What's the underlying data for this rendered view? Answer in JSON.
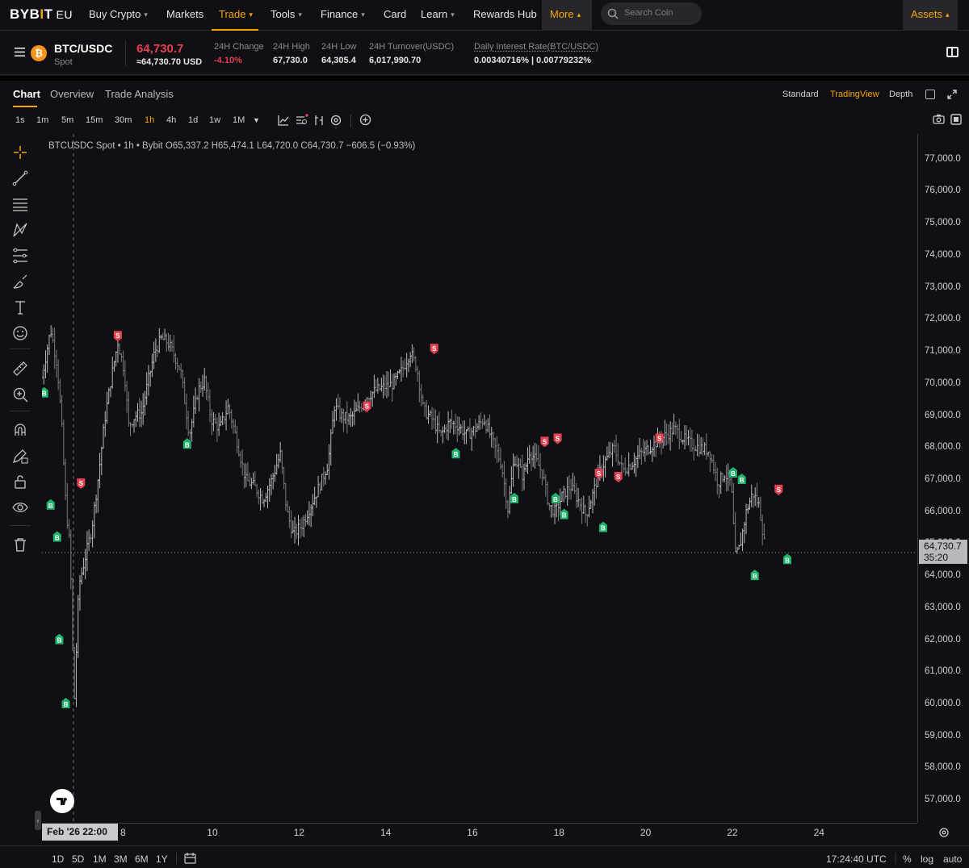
{
  "brand": {
    "logo_pre": "BYB",
    "logo_i": "I",
    "logo_post": "T",
    "region": "EU",
    "accent": "#f7a600",
    "down_color": "#e3414f",
    "up_color": "#20b26c"
  },
  "nav": {
    "items": [
      "Buy Crypto",
      "Markets",
      "Trade",
      "Tools",
      "Finance",
      "Card",
      "Learn",
      "Rewards Hub",
      "More"
    ],
    "search_placeholder": "Search Coin",
    "assets": "Assets"
  },
  "ticker": {
    "pair": "BTC/USDC",
    "type": "Spot",
    "coin_symbol": "₿",
    "last_price": "64,730.7",
    "last_usd": "≈64,730.70 USD",
    "stats": [
      {
        "label": "24H Change",
        "value": "-4.10%"
      },
      {
        "label": "24H High",
        "value": "67,730.0"
      },
      {
        "label": "24H Low",
        "value": "64,305.4"
      },
      {
        "label": "24H Turnover(USDC)",
        "value": "6,017,990.70"
      },
      {
        "label": "Daily Interest Rate(BTC/USDC)",
        "value": "0.00340716% | 0.00779232%"
      }
    ]
  },
  "tabs": [
    "Chart",
    "Overview",
    "Trade Analysis"
  ],
  "views": [
    "Standard",
    "TradingView",
    "Depth"
  ],
  "timeframes": [
    "1s",
    "1m",
    "5m",
    "15m",
    "30m",
    "1h",
    "4h",
    "1d",
    "1w",
    "1M"
  ],
  "active_timeframe": "1h",
  "legend": "BTCUSDC Spot • 1h • Bybit  O65,337.2  H65,474.1  L64,720.0  C64,730.7  −606.5 (−0.93%)",
  "price_tag": {
    "price": "64,730.7",
    "countdown": "35:20"
  },
  "crosshair_date": "Feb '26   22:00",
  "bottom": {
    "ranges": [
      "1D",
      "5D",
      "1M",
      "3M",
      "6M",
      "1Y"
    ],
    "clock": "17:24:40 UTC",
    "pct": "%",
    "log": "log",
    "auto": "auto"
  },
  "chart_data": {
    "type": "ohlc",
    "symbol": "BTCUSDC",
    "interval": "1h",
    "y_ticks": [
      77000,
      76000,
      75000,
      74000,
      73000,
      72000,
      71000,
      70000,
      69000,
      68000,
      67000,
      66000,
      65000,
      64000,
      63000,
      62000,
      61000,
      60000,
      59000,
      58000,
      57000
    ],
    "y_tick_labels": [
      "77,000.0",
      "76,000.0",
      "75,000.0",
      "74,000.0",
      "73,000.0",
      "72,000.0",
      "71,000.0",
      "70,000.0",
      "69,000.0",
      "68,000.0",
      "67,000.0",
      "66,000.0",
      "65,000.0",
      "64,000.0",
      "63,000.0",
      "62,000.0",
      "61,000.0",
      "60,000.0",
      "59,000.0",
      "58,000.0",
      "57,000.0"
    ],
    "x_tick_labels": [
      "8",
      "10",
      "12",
      "14",
      "16",
      "18",
      "20",
      "22",
      "24"
    ],
    "x_tick_days": [
      8,
      10,
      12,
      14,
      16,
      18,
      20,
      22,
      24
    ],
    "x_range_days": [
      6.1,
      26.3
    ],
    "y_range": [
      56300,
      77800
    ],
    "last_price": 64730.7,
    "path": [
      [
        6.1,
        70200
      ],
      [
        6.3,
        71700
      ],
      [
        6.45,
        70600
      ],
      [
        6.55,
        68800
      ],
      [
        6.65,
        66200
      ],
      [
        6.75,
        64800
      ],
      [
        6.8,
        62000
      ],
      [
        6.85,
        60200
      ],
      [
        6.95,
        63700
      ],
      [
        7.1,
        64600
      ],
      [
        7.25,
        65500
      ],
      [
        7.4,
        67100
      ],
      [
        7.55,
        68900
      ],
      [
        7.7,
        70200
      ],
      [
        7.85,
        71300
      ],
      [
        8.0,
        70400
      ],
      [
        8.1,
        68700
      ],
      [
        8.25,
        69000
      ],
      [
        8.4,
        69100
      ],
      [
        8.55,
        70100
      ],
      [
        8.7,
        71000
      ],
      [
        8.85,
        71400
      ],
      [
        9.0,
        71300
      ],
      [
        9.15,
        70900
      ],
      [
        9.3,
        70400
      ],
      [
        9.5,
        68400
      ],
      [
        9.7,
        69800
      ],
      [
        9.85,
        70100
      ],
      [
        10.0,
        68900
      ],
      [
        10.2,
        68600
      ],
      [
        10.4,
        69300
      ],
      [
        10.6,
        68200
      ],
      [
        10.8,
        67000
      ],
      [
        11.0,
        66800
      ],
      [
        11.2,
        66400
      ],
      [
        11.4,
        67000
      ],
      [
        11.6,
        67800
      ],
      [
        11.75,
        66000
      ],
      [
        11.9,
        65300
      ],
      [
        12.1,
        65600
      ],
      [
        12.3,
        66200
      ],
      [
        12.5,
        66800
      ],
      [
        12.7,
        67500
      ],
      [
        12.85,
        69300
      ],
      [
        13.0,
        69000
      ],
      [
        13.2,
        68900
      ],
      [
        13.4,
        69200
      ],
      [
        13.6,
        69600
      ],
      [
        13.8,
        69800
      ],
      [
        14.0,
        69900
      ],
      [
        14.2,
        70000
      ],
      [
        14.4,
        70400
      ],
      [
        14.6,
        71000
      ],
      [
        14.75,
        70500
      ],
      [
        14.9,
        69200
      ],
      [
        15.1,
        68900
      ],
      [
        15.3,
        68400
      ],
      [
        15.5,
        68800
      ],
      [
        15.7,
        68700
      ],
      [
        15.9,
        68400
      ],
      [
        16.1,
        68600
      ],
      [
        16.3,
        68900
      ],
      [
        16.5,
        68200
      ],
      [
        16.7,
        67500
      ],
      [
        16.85,
        66100
      ],
      [
        17.0,
        67700
      ],
      [
        17.2,
        67100
      ],
      [
        17.35,
        67900
      ],
      [
        17.5,
        67600
      ],
      [
        17.65,
        67200
      ],
      [
        17.8,
        66200
      ],
      [
        17.95,
        66000
      ],
      [
        18.1,
        66500
      ],
      [
        18.3,
        66800
      ],
      [
        18.5,
        66300
      ],
      [
        18.65,
        65900
      ],
      [
        18.8,
        66500
      ],
      [
        18.95,
        67200
      ],
      [
        19.1,
        67600
      ],
      [
        19.3,
        68000
      ],
      [
        19.5,
        67300
      ],
      [
        19.7,
        67500
      ],
      [
        19.9,
        67800
      ],
      [
        20.1,
        68000
      ],
      [
        20.3,
        68200
      ],
      [
        20.5,
        68400
      ],
      [
        20.7,
        68600
      ],
      [
        20.9,
        68300
      ],
      [
        21.1,
        68100
      ],
      [
        21.3,
        68000
      ],
      [
        21.5,
        67900
      ],
      [
        21.7,
        66900
      ],
      [
        21.85,
        67200
      ],
      [
        22.0,
        66900
      ],
      [
        22.1,
        64600
      ],
      [
        22.2,
        64900
      ],
      [
        22.35,
        66000
      ],
      [
        22.5,
        66600
      ],
      [
        22.65,
        66200
      ],
      [
        22.8,
        64730.7
      ]
    ],
    "markers": [
      {
        "side": "S",
        "day": 7.85,
        "price": 71500
      },
      {
        "side": "B",
        "day": 6.15,
        "price": 69700
      },
      {
        "side": "B",
        "day": 6.3,
        "price": 66200
      },
      {
        "side": "B",
        "day": 6.45,
        "price": 65200
      },
      {
        "side": "B",
        "day": 6.5,
        "price": 62000
      },
      {
        "side": "B",
        "day": 6.65,
        "price": 60000
      },
      {
        "side": "S",
        "day": 7.0,
        "price": 66900
      },
      {
        "side": "B",
        "day": 9.45,
        "price": 68100
      },
      {
        "side": "S",
        "day": 13.6,
        "price": 69300
      },
      {
        "side": "S",
        "day": 15.15,
        "price": 71100
      },
      {
        "side": "B",
        "day": 15.65,
        "price": 67800
      },
      {
        "side": "B",
        "day": 17.0,
        "price": 66400
      },
      {
        "side": "S",
        "day": 17.7,
        "price": 68200
      },
      {
        "side": "S",
        "day": 18.0,
        "price": 68300
      },
      {
        "side": "B",
        "day": 17.95,
        "price": 66400
      },
      {
        "side": "B",
        "day": 18.15,
        "price": 65900
      },
      {
        "side": "S",
        "day": 18.95,
        "price": 67200
      },
      {
        "side": "B",
        "day": 19.05,
        "price": 65500
      },
      {
        "side": "S",
        "day": 19.4,
        "price": 67100
      },
      {
        "side": "S",
        "day": 20.35,
        "price": 68300
      },
      {
        "side": "B",
        "day": 22.05,
        "price": 67200
      },
      {
        "side": "B",
        "day": 22.25,
        "price": 67000
      },
      {
        "side": "B",
        "day": 22.55,
        "price": 64000
      },
      {
        "side": "S",
        "day": 23.1,
        "price": 66700
      },
      {
        "side": "B",
        "day": 23.3,
        "price": 64500
      }
    ]
  }
}
